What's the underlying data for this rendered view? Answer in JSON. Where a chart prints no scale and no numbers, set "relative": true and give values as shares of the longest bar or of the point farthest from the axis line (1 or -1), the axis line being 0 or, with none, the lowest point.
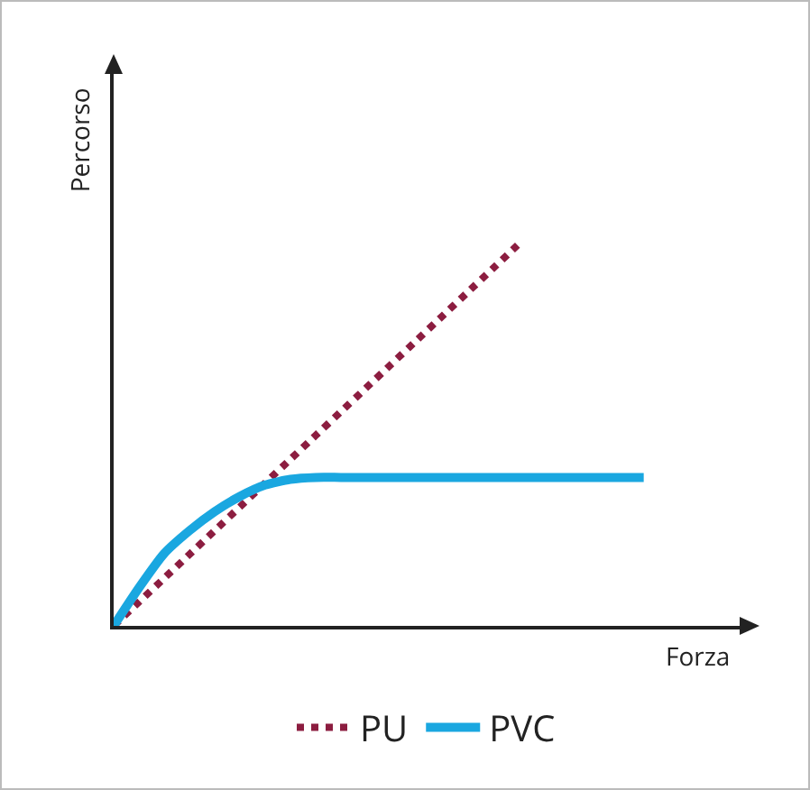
{
  "chart_data": {
    "type": "line",
    "relative": true,
    "xlabel": "Forza",
    "ylabel": "Percorso",
    "categories": [
      null,
      null,
      null,
      null,
      null,
      null,
      null,
      null,
      null,
      null,
      null,
      null,
      null,
      null,
      null,
      null,
      null,
      null,
      null,
      null,
      null,
      null,
      null,
      null,
      null
    ],
    "series": [
      {
        "name": "PU",
        "color": "#8c1d40",
        "line_style": "dotted",
        "values": [
          0,
          0.0625,
          0.125,
          0.1875,
          0.25,
          0.3125,
          0.375,
          0.4375,
          0.5,
          0.5625,
          0.625,
          0.6875,
          0.75,
          0.8125,
          0.875,
          0.9375,
          1,
          null,
          null,
          null,
          null,
          null,
          null,
          null,
          null
        ]
      },
      {
        "name": "PVC",
        "color": "#1aa7e0",
        "line_style": "solid",
        "values": [
          0,
          0.1,
          0.19,
          0.25,
          0.3,
          0.34,
          0.37,
          0.385,
          0.39,
          0.39,
          0.39,
          0.39,
          0.39,
          0.39,
          0.39,
          0.39,
          0.39,
          0.39,
          0.39,
          0.39,
          0.39,
          0.39,
          null,
          null,
          null
        ]
      }
    ],
    "legend": "bottom",
    "grid": false,
    "marker": "none"
  }
}
